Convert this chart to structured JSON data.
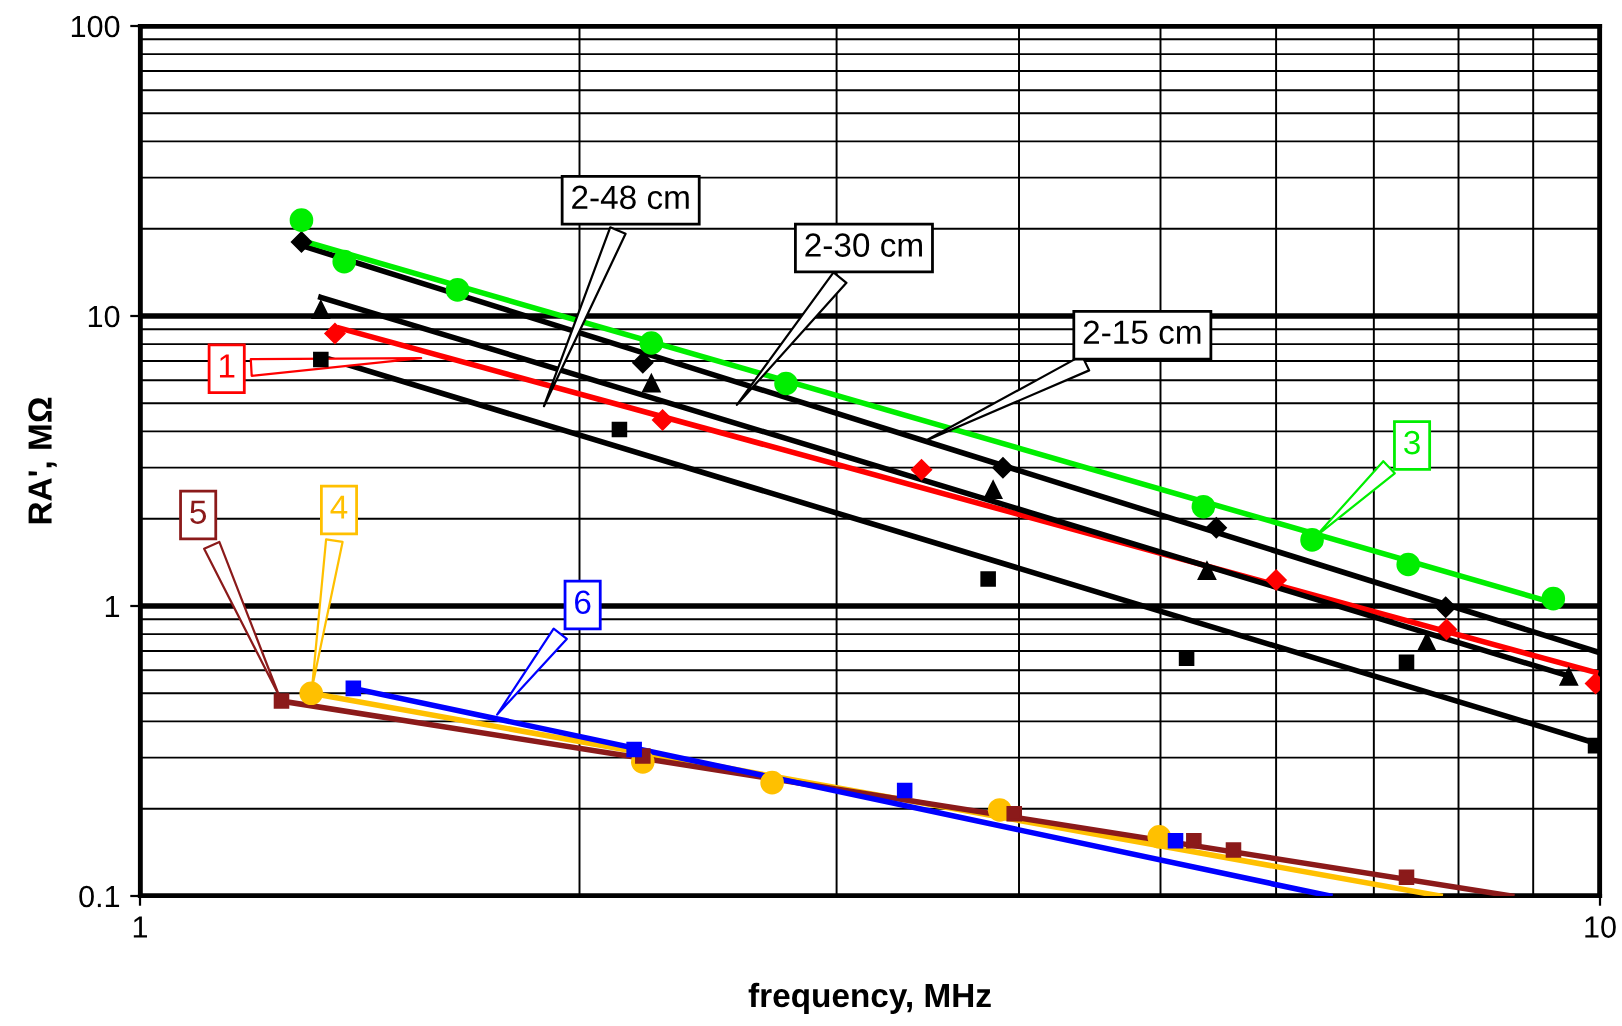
{
  "chart_data": {
    "type": "scatter",
    "xlabel": "frequency, MHz",
    "ylabel": "RA', MΩ",
    "log": "xy",
    "grid": true,
    "legend": false,
    "xlim": [
      1,
      10
    ],
    "ylim": [
      0.1,
      100
    ],
    "xticks": [
      1,
      {
        "value": 2,
        "label": null
      },
      {
        "value": 3,
        "label": null
      },
      {
        "value": 4,
        "label": null
      },
      {
        "value": 5,
        "label": null
      },
      {
        "value": 6,
        "label": null
      },
      {
        "value": 7,
        "label": null
      },
      {
        "value": 8,
        "label": null
      },
      {
        "value": 9,
        "label": null
      },
      10
    ],
    "yticks": [
      0.1,
      {
        "value": 0.2,
        "label": null
      },
      {
        "value": 0.3,
        "label": null
      },
      {
        "value": 0.4,
        "label": null
      },
      {
        "value": 0.5,
        "label": null
      },
      {
        "value": 0.6,
        "label": null
      },
      {
        "value": 0.7,
        "label": null
      },
      {
        "value": 0.8,
        "label": null
      },
      {
        "value": 0.9,
        "label": null
      },
      1,
      {
        "value": 2,
        "label": null
      },
      {
        "value": 3,
        "label": null
      },
      {
        "value": 4,
        "label": null
      },
      {
        "value": 5,
        "label": null
      },
      {
        "value": 6,
        "label": null
      },
      {
        "value": 7,
        "label": null
      },
      {
        "value": 8,
        "label": null
      },
      {
        "value": 9,
        "label": null
      },
      10,
      {
        "value": 20,
        "label": null
      },
      {
        "value": 30,
        "label": null
      },
      {
        "value": 40,
        "label": null
      },
      {
        "value": 50,
        "label": null
      },
      {
        "value": 60,
        "label": null
      },
      {
        "value": 70,
        "label": null
      },
      {
        "value": 80,
        "label": null
      },
      {
        "value": 90,
        "label": null
      },
      100
    ],
    "series": [
      {
        "name": "1",
        "color": "#ff0000",
        "marker": "diamond",
        "x": [
          1.36,
          2.28,
          3.43,
          6.0,
          7.85,
          9.93
        ],
        "values": [
          8.7,
          4.38,
          2.95,
          1.23,
          0.83,
          0.54
        ]
      },
      {
        "name": "2-15 cm",
        "color": "#000000",
        "marker": "diamond",
        "x": [
          1.29,
          2.21,
          3.9,
          5.46,
          7.84
        ],
        "values": [
          18.0,
          6.9,
          3.0,
          1.86,
          0.99
        ]
      },
      {
        "name": "2-30 cm",
        "color": "#000000",
        "marker": "triangle",
        "x": [
          1.33,
          2.24,
          3.84,
          5.38,
          7.61,
          9.52
        ],
        "values": [
          10.5,
          5.85,
          2.51,
          1.32,
          0.75,
          0.57
        ]
      },
      {
        "name": "2-48 cm",
        "color": "#000000",
        "marker": "square",
        "x": [
          1.33,
          2.13,
          3.81,
          5.21,
          7.37,
          9.93
        ],
        "values": [
          7.08,
          4.06,
          1.24,
          0.66,
          0.64,
          0.33
        ]
      },
      {
        "name": "3",
        "color": "#00ee00",
        "marker": "circle",
        "x": [
          1.29,
          1.38,
          1.65,
          2.24,
          2.77,
          5.35,
          6.35,
          7.39,
          9.29
        ],
        "values": [
          21.4,
          15.4,
          12.3,
          8.07,
          5.85,
          2.2,
          1.69,
          1.39,
          1.06
        ]
      },
      {
        "name": "4",
        "color": "#ffc000",
        "marker": "circle",
        "x": [
          1.31,
          2.21,
          2.71,
          3.88,
          4.99
        ],
        "values": [
          0.5,
          0.29,
          0.246,
          0.198,
          0.16
        ]
      },
      {
        "name": "5",
        "color": "#8b1a1a",
        "marker": "square",
        "x": [
          1.25,
          2.21,
          3.97,
          5.27,
          5.61,
          7.37
        ],
        "values": [
          0.47,
          0.304,
          0.192,
          0.155,
          0.144,
          0.116
        ]
      },
      {
        "name": "6",
        "color": "#0000ff",
        "marker": "square",
        "x": [
          1.4,
          2.18,
          3.34,
          5.12
        ],
        "values": [
          0.52,
          0.32,
          0.231,
          0.155
        ]
      },
      {
        "type": "line",
        "color": "#ff0000",
        "x": [
          1.37,
          9.93
        ],
        "values": [
          9.08,
          0.59
        ]
      },
      {
        "type": "line",
        "color": "#000000",
        "x": [
          1.29,
          10
        ],
        "values": [
          17.5,
          0.69
        ]
      },
      {
        "type": "line",
        "color": "#000000",
        "x": [
          1.33,
          9.45
        ],
        "values": [
          11.6,
          0.58
        ]
      },
      {
        "type": "line",
        "color": "#000000",
        "x": [
          1.35,
          10
        ],
        "values": [
          7.08,
          0.333
        ]
      },
      {
        "type": "line",
        "color": "#00ee00",
        "x": [
          1.3,
          9.2
        ],
        "values": [
          18.0,
          1.04
        ]
      },
      {
        "type": "line",
        "color": "#ffc000",
        "x": [
          1.31,
          7.77
        ],
        "values": [
          0.5,
          0.1
        ]
      },
      {
        "type": "line",
        "color": "#8b1a1a",
        "x": [
          1.25,
          8.7
        ],
        "values": [
          0.47,
          0.1
        ]
      },
      {
        "type": "line",
        "color": "#0000ff",
        "x": [
          1.4,
          6.53
        ],
        "values": [
          0.52,
          0.1
        ]
      }
    ]
  }
}
